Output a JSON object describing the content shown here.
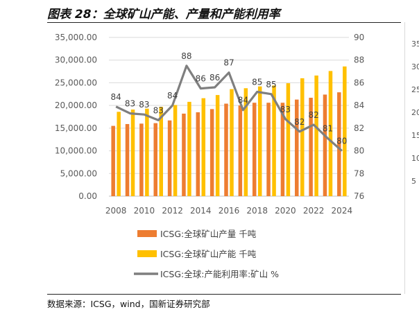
{
  "title": "图表 28：全球矿山产能、产量和产能利用率",
  "source": "数据来源：ICSG，wind，国新证券研究部",
  "clipped_right_ticks": [
    "35",
    "30",
    "25",
    "20",
    "15",
    "10",
    "5"
  ],
  "colors": {
    "production": "#ED7D31",
    "capacity": "#FFC000",
    "utilization": "#7F7F7F"
  },
  "chart_data": {
    "type": "bar",
    "x": [
      2008,
      2009,
      2010,
      2011,
      2012,
      2013,
      2014,
      2015,
      2016,
      2017,
      2018,
      2019,
      2020,
      2021,
      2022,
      2023,
      2024
    ],
    "x_tick_labels": [
      "2008",
      "2010",
      "2012",
      "2014",
      "2016",
      "2018",
      "2020",
      "2022",
      "2024"
    ],
    "y_left_ticks": [
      "0.00",
      "5,000.00",
      "10,000.00",
      "15,000.00",
      "20,000.00",
      "25,000.00",
      "30,000.00",
      "35,000.00"
    ],
    "y_right_ticks": [
      "76",
      "78",
      "80",
      "82",
      "84",
      "86",
      "88",
      "90"
    ],
    "ylim_left": [
      0,
      35000
    ],
    "ylim_right": [
      76,
      90
    ],
    "grid": true,
    "legend_position": "bottom",
    "series": [
      {
        "name": "ICSG:全球矿山产量 千吨",
        "type": "bar",
        "axis": "left",
        "values": [
          15500,
          15900,
          16000,
          16100,
          16700,
          18200,
          18500,
          19200,
          20400,
          20000,
          20600,
          20600,
          20600,
          21300,
          21700,
          22400,
          22900
        ]
      },
      {
        "name": "ICSG:全球矿山产能 千吨",
        "type": "bar",
        "axis": "left",
        "values": [
          18600,
          19100,
          19300,
          19700,
          20100,
          20800,
          21600,
          22300,
          23600,
          23800,
          24200,
          24400,
          24900,
          26000,
          26600,
          27600,
          28600
        ]
      },
      {
        "name": "ICSG:全球:产能利用率:矿山 %",
        "type": "line",
        "axis": "right",
        "values": [
          84,
          83,
          83,
          83,
          84,
          88,
          86,
          86,
          87,
          84,
          85,
          85,
          83,
          82,
          82,
          81,
          80
        ],
        "labels": [
          "84",
          "83",
          "83",
          "83",
          "84",
          "88",
          "86",
          "86",
          "87",
          "84",
          "85",
          "85",
          "83",
          "82",
          "82",
          "81",
          "80"
        ],
        "line_values": [
          83.9,
          83.3,
          83.2,
          82.7,
          84.0,
          87.5,
          85.5,
          85.6,
          86.9,
          83.6,
          85.2,
          85.0,
          82.8,
          81.7,
          82.3,
          81.1,
          80.0
        ]
      }
    ]
  }
}
